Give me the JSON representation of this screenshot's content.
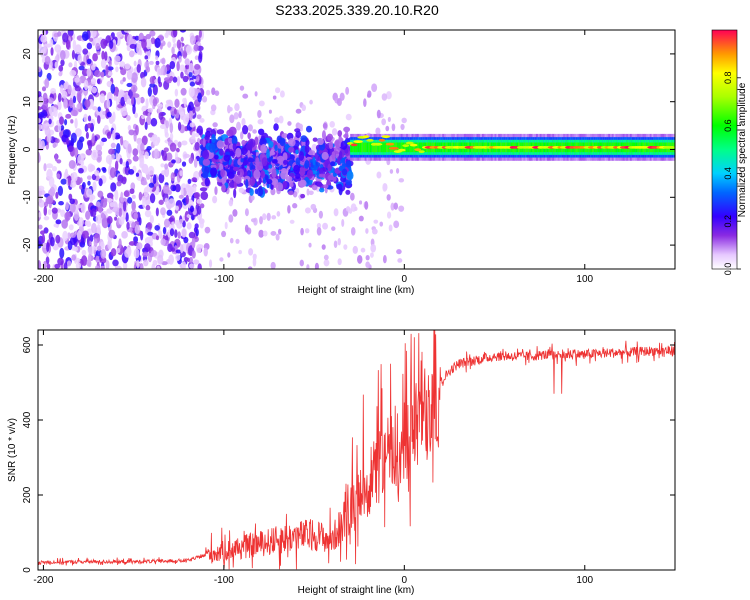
{
  "title": "S233.2025.339.20.10.R20",
  "chart_data": [
    {
      "type": "heatmap",
      "xlabel": "Height of straight line (km)",
      "ylabel": "Frequency (Hz)",
      "xlim": [
        -203,
        150
      ],
      "ylim": [
        -25,
        25
      ],
      "xticks": [
        -200,
        -100,
        0,
        100
      ],
      "yticks": [
        -20,
        -10,
        0,
        10,
        20
      ],
      "xtick_labels": [
        "-200",
        "-100",
        "0",
        "100"
      ],
      "ytick_labels": [
        "-20",
        "-10",
        "0",
        "10",
        "20"
      ],
      "colorbar": {
        "label": "Normalized spectral amplitude",
        "range": [
          0,
          1
        ],
        "ticks": [
          0.0,
          0.2,
          0.4,
          0.6,
          0.8
        ],
        "tick_labels": [
          "0.0",
          "0.2",
          "0.4",
          "0.6",
          "0.8"
        ]
      },
      "regions": [
        {
          "x": [
            -203,
            -112
          ],
          "freq": [
            -25,
            25
          ],
          "amplitude": [
            0.05,
            0.25
          ],
          "pattern": "scattered noise"
        },
        {
          "x": [
            -112,
            -30
          ],
          "freq": [
            -10,
            7
          ],
          "amplitude": [
            0.1,
            0.35
          ],
          "pattern": "clustered signal"
        },
        {
          "x": [
            -30,
            150
          ],
          "freq": [
            -1.5,
            3
          ],
          "amplitude": [
            0.4,
            1.0
          ],
          "pattern": "narrow band near 0.5 Hz"
        }
      ]
    },
    {
      "type": "line",
      "xlabel": "Height of straight line (km)",
      "ylabel": "SNR (10 * v/v)",
      "xlim": [
        -203,
        150
      ],
      "ylim": [
        0,
        640
      ],
      "xticks": [
        -200,
        -100,
        0,
        100
      ],
      "yticks": [
        0,
        200,
        400,
        600
      ],
      "xtick_labels": [
        "-200",
        "-100",
        "0",
        "100"
      ],
      "ytick_labels": [
        "0",
        "200",
        "400",
        "600"
      ],
      "line_color": "#ee3333",
      "series": [
        {
          "name": "SNR",
          "x": [
            -203,
            -180,
            -150,
            -120,
            -110,
            -100,
            -90,
            -80,
            -70,
            -60,
            -50,
            -40,
            -35,
            -30,
            -25,
            -20,
            -15,
            -10,
            -5,
            0,
            5,
            10,
            15,
            20,
            25,
            30,
            40,
            50,
            60,
            70,
            80,
            90,
            100,
            110,
            120,
            130,
            140,
            150
          ],
          "y": [
            20,
            22,
            22,
            25,
            40,
            50,
            60,
            70,
            80,
            90,
            95,
            80,
            120,
            160,
            190,
            230,
            270,
            300,
            320,
            340,
            380,
            420,
            460,
            500,
            530,
            550,
            560,
            570,
            570,
            570,
            575,
            575,
            575,
            578,
            580,
            582,
            585,
            585
          ]
        }
      ]
    }
  ]
}
